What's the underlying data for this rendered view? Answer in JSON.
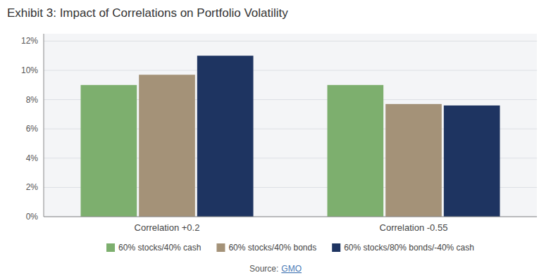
{
  "chart_data": {
    "type": "bar",
    "title": "Exhibit 3: Impact of Correlations on Portfolio Volatility",
    "categories": [
      "Correlation +0.2",
      "Correlation -0.55"
    ],
    "series": [
      {
        "name": "60% stocks/40% cash",
        "color": "#7daf6e",
        "values": [
          0.09,
          0.09
        ]
      },
      {
        "name": "60% stocks/40% bonds",
        "color": "#a49278",
        "values": [
          0.097,
          0.077
        ]
      },
      {
        "name": "60% stocks/80% bonds/-40% cash",
        "color": "#1e3461",
        "values": [
          0.11,
          0.076
        ]
      }
    ],
    "ylim": [
      0,
      0.125
    ],
    "yticks": [
      {
        "value": 0.0,
        "label": "0%"
      },
      {
        "value": 0.02,
        "label": "2%"
      },
      {
        "value": 0.04,
        "label": "4%"
      },
      {
        "value": 0.06,
        "label": "6%"
      },
      {
        "value": 0.08,
        "label": "8%"
      },
      {
        "value": 0.1,
        "label": "10%"
      },
      {
        "value": 0.12,
        "label": "12%"
      }
    ],
    "grid": true,
    "legend": "bottom",
    "annotations": [
      "Source:",
      "GMO"
    ]
  }
}
